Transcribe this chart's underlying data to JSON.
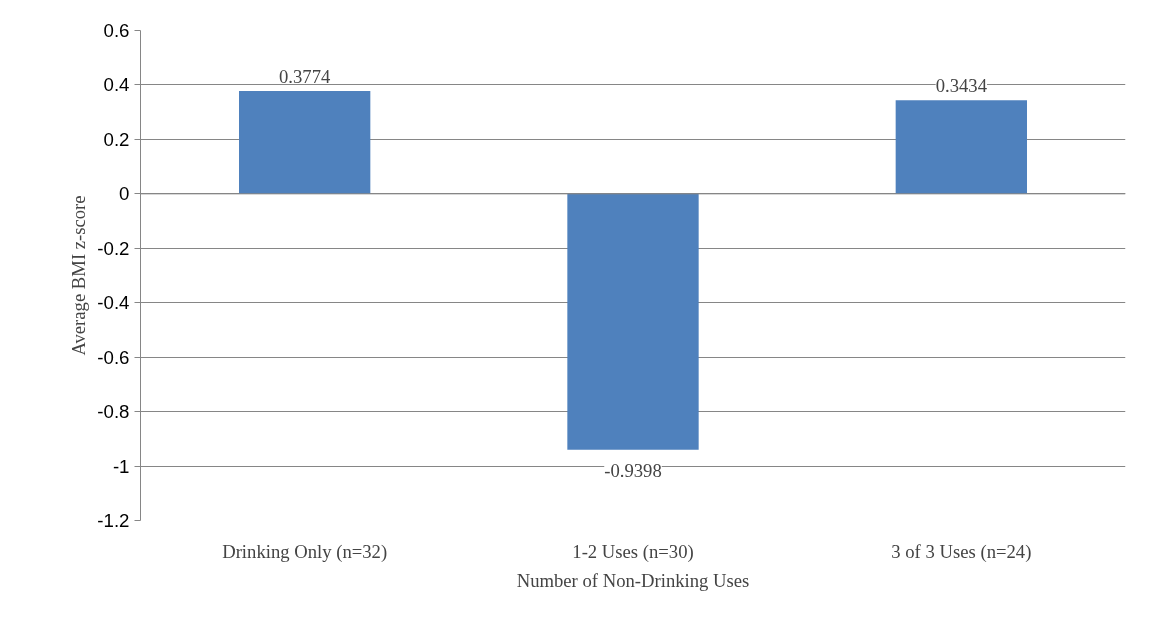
{
  "chart_data": {
    "type": "bar",
    "xlabel": "Number of Non-Drinking Uses",
    "ylabel": "Average BMI z-score",
    "categories": [
      "Drinking Only (n=32)",
      "1-2 Uses (n=30)",
      "3 of 3 Uses (n=24)"
    ],
    "values": [
      0.3774,
      -0.9398,
      0.3434
    ],
    "color": "#4f81bd",
    "ylim": [
      -1.2,
      0.6
    ],
    "yticks": [
      -1.2,
      -1,
      -0.8,
      -0.6,
      -0.4,
      -0.2,
      0,
      0.2,
      0.4,
      0.6
    ],
    "grid": "y",
    "data_labels": true
  }
}
